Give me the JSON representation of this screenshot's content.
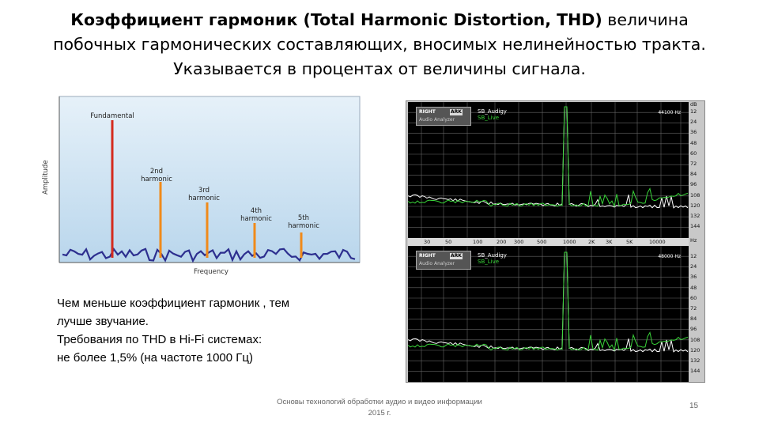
{
  "slide": {
    "title_bold": "Коэффициент гармоник (Total Harmonic Distortion, THD)",
    "title_rest_1": " величина",
    "title_line2": "побочных гармонических составляющих, вносимых нелинейностью тракта.",
    "title_line3": "Указывается в процентах от величины сигнала."
  },
  "diagram": {
    "ylabel": "Amplitude",
    "xlabel": "Frequency",
    "labels": {
      "fundamental": "Fundamental",
      "h2_line1": "2nd",
      "h2_line2": "harmonic",
      "h3_line1": "3rd",
      "h3_line2": "harmonic",
      "h4_line1": "4th",
      "h4_line2": "harmonic",
      "h5_line1": "5th",
      "h5_line2": "harmonic"
    },
    "colors": {
      "fundamental": "#d42b1e",
      "harmonic": "#f08a1a",
      "noise": "#2d2f8f",
      "bg": "#d7e8f4"
    }
  },
  "note": {
    "line1_a": "Чем меньше ",
    "line1_b": "коэффициент гармоник",
    "line1_c": " , тем",
    "line2": "лучше звучание.",
    "line3": "Требования по THD в Hi-Fi системах:",
    "line4": " не более 1,5% (на частоте 1000 Гц)"
  },
  "analyzer": {
    "badge_right": "RIGHT",
    "badge_ark": "ARK",
    "badge_sub": "Audio Analyzer",
    "legend_a": "SB_Audigy",
    "legend_b": "SB_Live",
    "top_rate": "44100 Hz",
    "bottom_rate": "48000 Hz",
    "db_unit": "dB",
    "hz_unit": "Hz",
    "top_db_ticks": [
      "12",
      "24",
      "36",
      "48",
      "60",
      "72",
      "84",
      "96",
      "108",
      "120",
      "132",
      "144"
    ],
    "bottom_db_ticks": [
      "12",
      "24",
      "36",
      "48",
      "60",
      "72",
      "84",
      "96",
      "108",
      "120",
      "132",
      "144"
    ],
    "freq_ticks": [
      "30",
      "50",
      "100",
      "200",
      "300",
      "500",
      "1000",
      "2K",
      "3K",
      "5K",
      "10000"
    ]
  },
  "footer": {
    "line1": "Основы технологий обработки аудио и видео информации",
    "line2": "2015 г.",
    "page": "15"
  }
}
